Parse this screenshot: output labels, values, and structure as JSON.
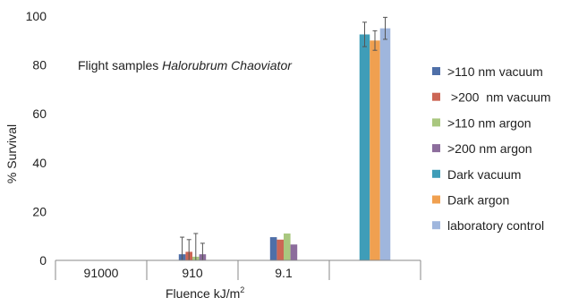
{
  "chart_data": {
    "type": "bar",
    "annotation": {
      "prefix": "Flight samples ",
      "organism": "Halorubrum Chaoviator"
    },
    "ylabel": "% Survival",
    "xlabel": "Fluence kJ/m",
    "xlabel_superscript": "2",
    "ylim": [
      0,
      100
    ],
    "yticks": [
      "0",
      "20",
      "40",
      "60",
      "80",
      "100"
    ],
    "categories": [
      "91000",
      "910",
      "9.1",
      ""
    ],
    "legend_position": "right",
    "series": [
      {
        "name": ">110 nm vacuum",
        "color": "#4f6fa8",
        "values": [
          0,
          2.5,
          9.5,
          null
        ],
        "errors": [
          0,
          7,
          0,
          null
        ]
      },
      {
        "name": " >200  nm vacuum",
        "color": "#cc6655",
        "values": [
          0,
          3.5,
          8.5,
          null
        ],
        "errors": [
          0,
          5,
          0,
          null
        ]
      },
      {
        "name": ">110 nm argon",
        "color": "#a9c77f",
        "values": [
          0,
          1.5,
          11,
          null
        ],
        "errors": [
          0,
          9.5,
          0,
          null
        ]
      },
      {
        "name": ">200 nm argon",
        "color": "#8c6d9c",
        "values": [
          0,
          2.5,
          6.5,
          null
        ],
        "errors": [
          0,
          4.5,
          0,
          null
        ]
      },
      {
        "name": "Dark vacuum",
        "color": "#3f9db8",
        "values": [
          null,
          null,
          null,
          92.5
        ],
        "errors": [
          null,
          null,
          null,
          5
        ]
      },
      {
        "name": "Dark argon",
        "color": "#f0a050",
        "values": [
          null,
          null,
          null,
          90
        ],
        "errors": [
          null,
          null,
          null,
          4
        ]
      },
      {
        "name": "laboratory control",
        "color": "#9fb6dd",
        "values": [
          null,
          null,
          null,
          95
        ],
        "errors": [
          null,
          null,
          null,
          4.5
        ]
      }
    ]
  }
}
